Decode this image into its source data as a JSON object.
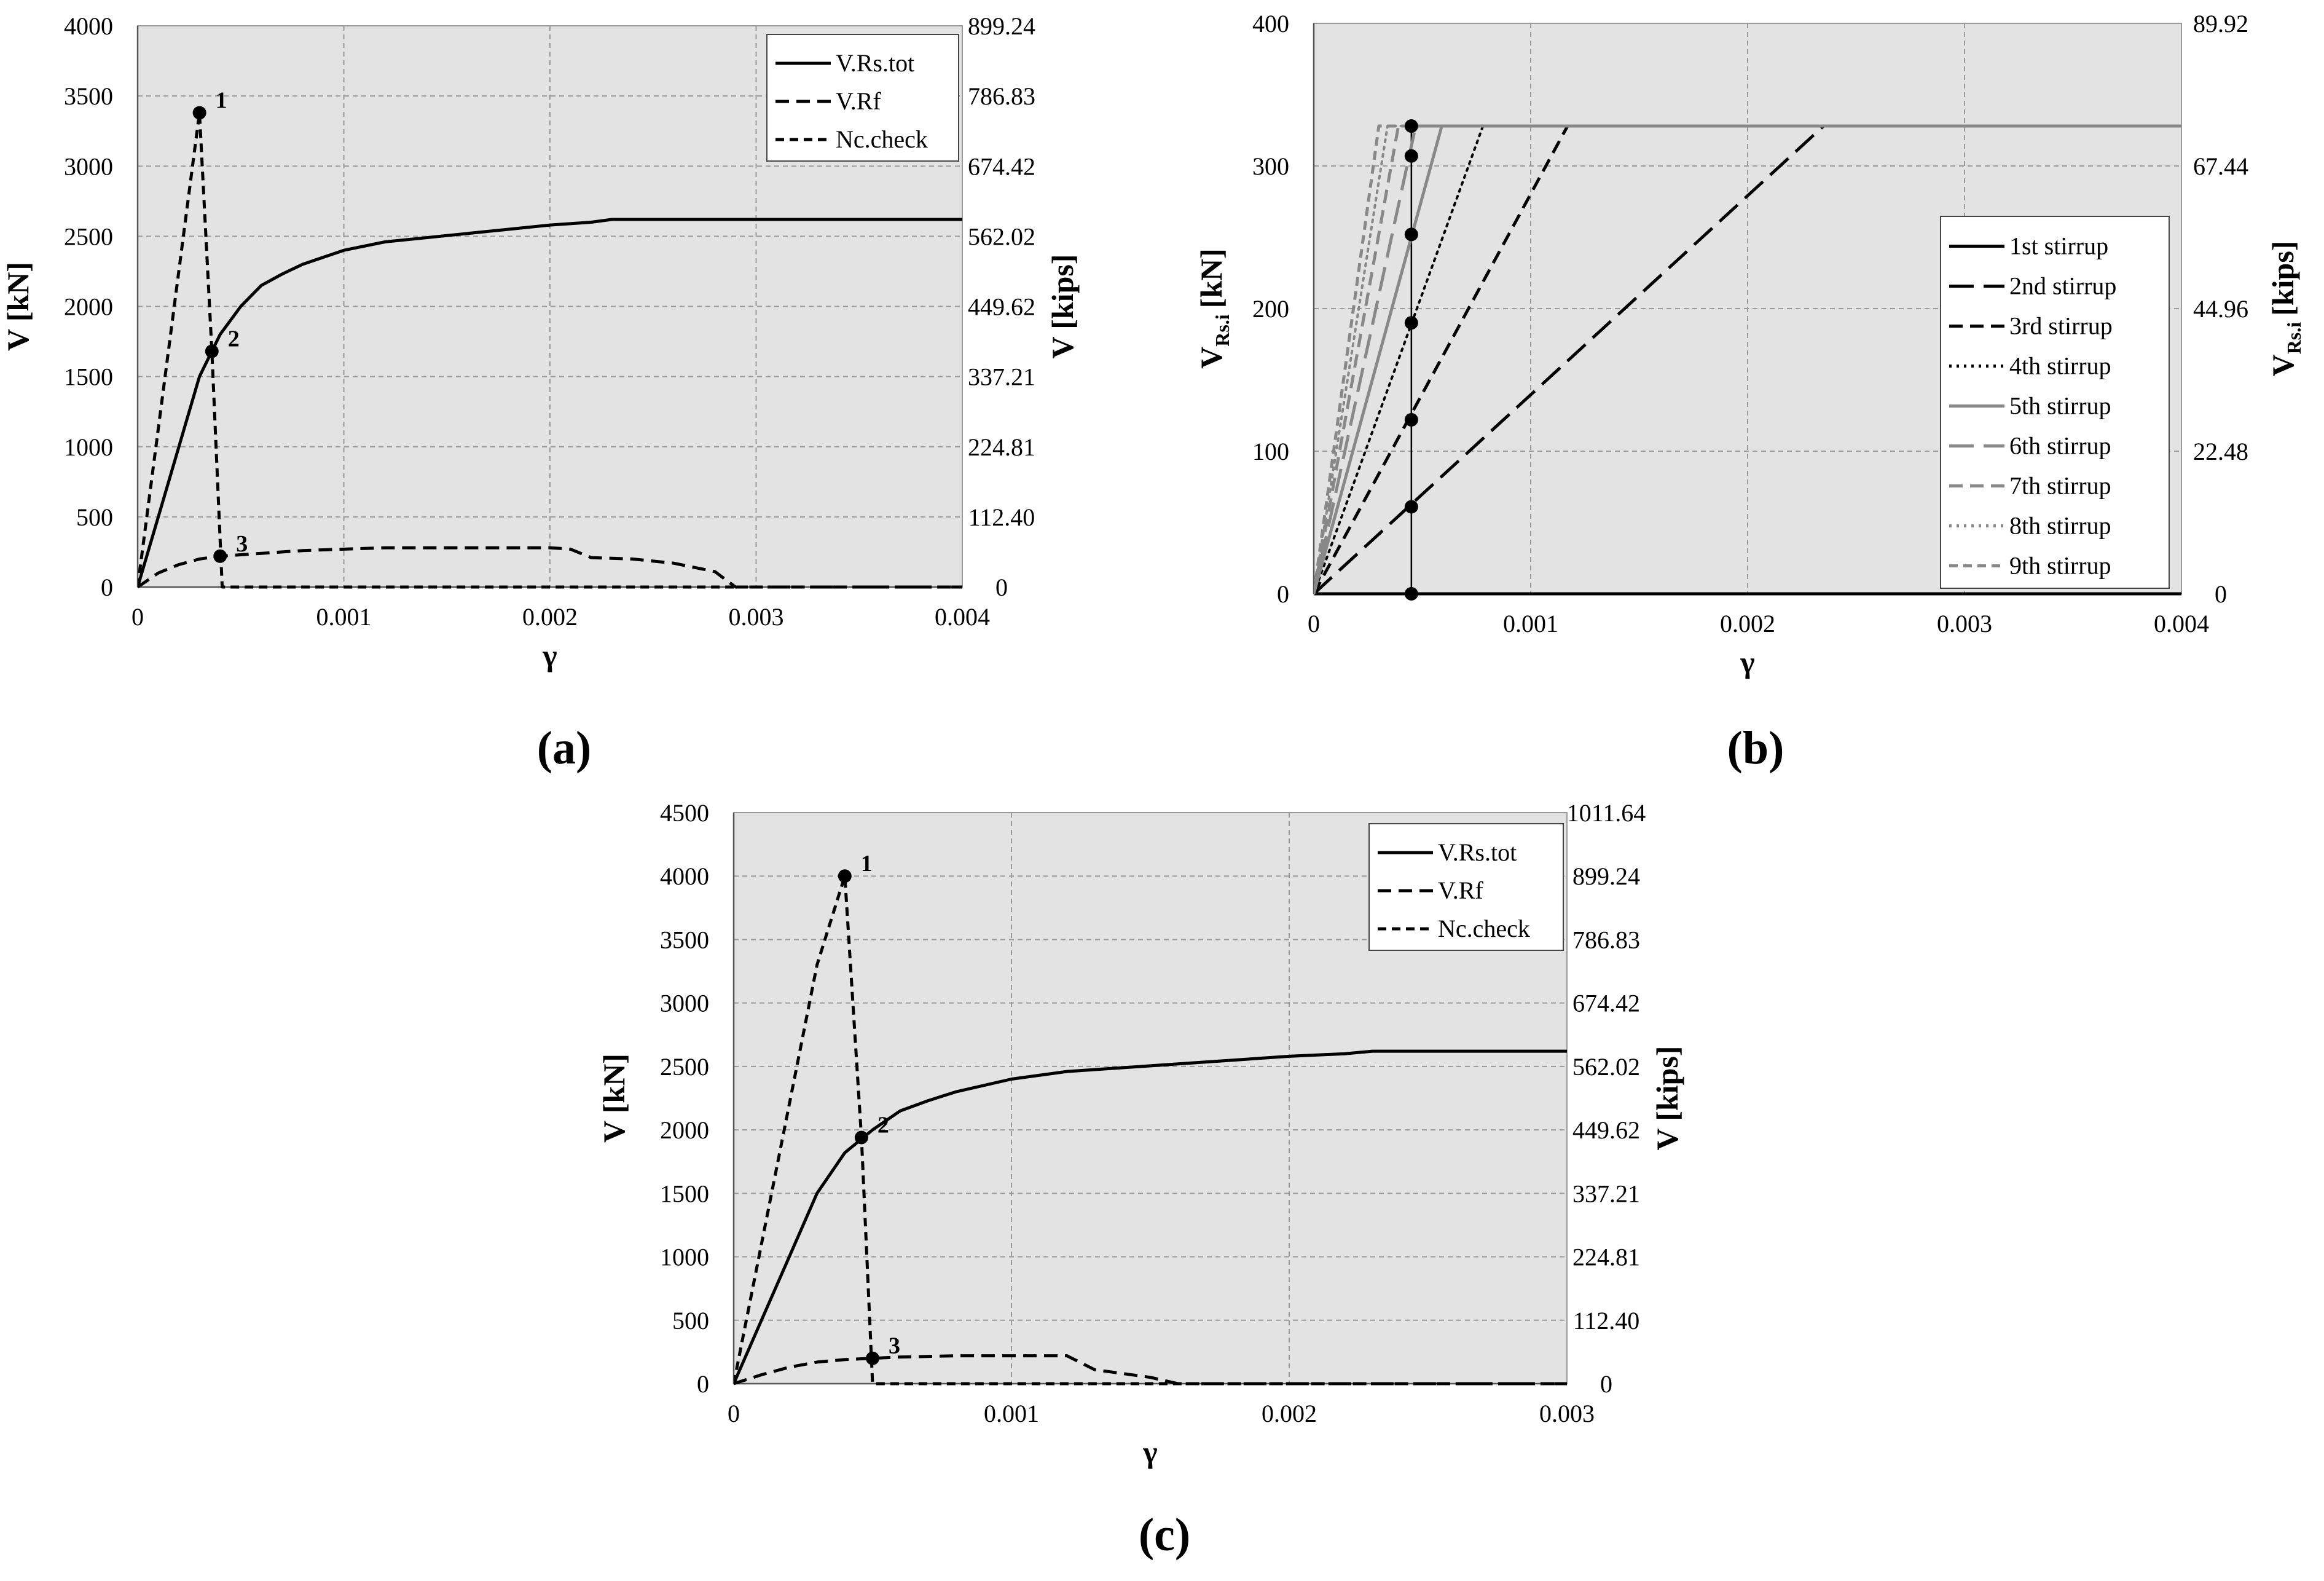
{
  "figure": {
    "panel_labels": [
      "(a)",
      "(b)",
      "(c)"
    ]
  },
  "chart_data": [
    {
      "id": "a",
      "type": "line",
      "panel_label": "(a)",
      "xlabel": "γ",
      "ylabel": "V  [kN]",
      "y2label": "V  [kips]",
      "xlim": [
        0,
        0.004
      ],
      "ylim": [
        0,
        4000
      ],
      "xticks": [
        0,
        0.001,
        0.002,
        0.003,
        0.004
      ],
      "xtick_labels": [
        "0",
        "0.001",
        "0.002",
        "0.003",
        "0.004"
      ],
      "yticks": [
        0,
        500,
        1000,
        1500,
        2000,
        2500,
        3000,
        3500,
        4000
      ],
      "ytick_labels": [
        "0",
        "500",
        "1000",
        "1500",
        "2000",
        "2500",
        "3000",
        "3500",
        "4000"
      ],
      "y2ticks": [
        0,
        500,
        1000,
        1500,
        2000,
        2500,
        3000,
        3500,
        4000
      ],
      "y2tick_labels": [
        "0",
        "112.40",
        "224.81",
        "337.21",
        "449.62",
        "562.02",
        "674.42",
        "786.83",
        "899.24"
      ],
      "grid": true,
      "legend_position": "top-right",
      "series": [
        {
          "name": "V.Rs.tot",
          "style": "solid",
          "color": "#000000",
          "x": [
            0,
            0.0001,
            0.0002,
            0.0003,
            0.0004,
            0.0005,
            0.0006,
            0.0007,
            0.0008,
            0.001,
            0.0012,
            0.0014,
            0.0016,
            0.0018,
            0.002,
            0.0022,
            0.0023,
            0.004
          ],
          "y": [
            0,
            500,
            1000,
            1500,
            1800,
            2000,
            2150,
            2230,
            2300,
            2400,
            2460,
            2490,
            2520,
            2550,
            2580,
            2600,
            2620,
            2620
          ]
        },
        {
          "name": "V.Rf",
          "style": "dash",
          "color": "#000000",
          "x": [
            0,
            0.0001,
            0.0002,
            0.0003,
            0.0004,
            0.0006,
            0.0008,
            0.001,
            0.0012,
            0.0014,
            0.0016,
            0.0018,
            0.002,
            0.0021,
            0.0022,
            0.0024,
            0.0026,
            0.0028,
            0.0029,
            0.004
          ],
          "y": [
            0,
            100,
            160,
            200,
            220,
            240,
            260,
            270,
            280,
            280,
            280,
            280,
            280,
            270,
            210,
            200,
            170,
            110,
            0,
            0
          ]
        },
        {
          "name": "Nc.check",
          "style": "short-dash",
          "color": "#000000",
          "x": [
            0,
            0.0003,
            0.00036,
            0.00041,
            0.004
          ],
          "y": [
            0,
            3380,
            1680,
            0,
            0
          ]
        }
      ],
      "markers": [
        {
          "label": "1",
          "x": 0.0003,
          "y": 3380
        },
        {
          "label": "2",
          "x": 0.00036,
          "y": 1680
        },
        {
          "label": "3",
          "x": 0.0004,
          "y": 220
        }
      ]
    },
    {
      "id": "b",
      "type": "line",
      "panel_label": "(b)",
      "xlabel": "γ",
      "ylabel": "VRs.i [kN]",
      "ylabel_main": "V",
      "ylabel_sub": "Rs.i",
      "ylabel_unit": "[kN]",
      "y2label": "VRs.i [kips]",
      "y2label_main": "V",
      "y2label_sub": "Rs.i",
      "y2label_unit": "[kips]",
      "xlim": [
        0,
        0.004
      ],
      "ylim": [
        0,
        400
      ],
      "xticks": [
        0,
        0.001,
        0.002,
        0.003,
        0.004
      ],
      "xtick_labels": [
        "0",
        "0.001",
        "0.002",
        "0.003",
        "0.004"
      ],
      "yticks": [
        0,
        100,
        200,
        300,
        400
      ],
      "ytick_labels": [
        "0",
        "100",
        "200",
        "300",
        "400"
      ],
      "y2ticks": [
        0,
        100,
        200,
        300,
        400
      ],
      "y2tick_labels": [
        "0",
        "22.48",
        "44.96",
        "67.44",
        "89.92"
      ],
      "grid": true,
      "legend_position": "right",
      "series": [
        {
          "name": "1st stirrup",
          "style": "solid",
          "color": "#000000",
          "x": [
            0,
            0.004
          ],
          "y": [
            0,
            0
          ]
        },
        {
          "name": "2nd stirrup",
          "style": "long-dash",
          "color": "#000000",
          "x": [
            0,
            0.00235,
            0.004
          ],
          "y": [
            0,
            328,
            328
          ]
        },
        {
          "name": "3rd stirrup",
          "style": "dash",
          "color": "#000000",
          "x": [
            0,
            0.00117,
            0.004
          ],
          "y": [
            0,
            328,
            328
          ]
        },
        {
          "name": "4th stirrup",
          "style": "dot",
          "color": "#000000",
          "x": [
            0,
            0.00078,
            0.004
          ],
          "y": [
            0,
            328,
            328
          ]
        },
        {
          "name": "5th stirrup",
          "style": "solid",
          "color": "#888888",
          "x": [
            0,
            0.00059,
            0.004
          ],
          "y": [
            0,
            328,
            328
          ]
        },
        {
          "name": "6th stirrup",
          "style": "long-dash",
          "color": "#888888",
          "x": [
            0,
            0.00047,
            0.004
          ],
          "y": [
            0,
            328,
            328
          ]
        },
        {
          "name": "7th stirrup",
          "style": "dash",
          "color": "#888888",
          "x": [
            0,
            0.00039,
            0.004
          ],
          "y": [
            0,
            328,
            328
          ]
        },
        {
          "name": "8th stirrup",
          "style": "dot",
          "color": "#888888",
          "x": [
            0,
            0.00034,
            0.004
          ],
          "y": [
            0,
            328,
            328
          ]
        },
        {
          "name": "9th stirrup",
          "style": "short-dash",
          "color": "#888888",
          "x": [
            0,
            0.0003,
            0.004
          ],
          "y": [
            0,
            328,
            328
          ]
        }
      ],
      "vertical_line_x": 0.00045,
      "markers": [
        {
          "label": "",
          "x": 0.00045,
          "y": 0
        },
        {
          "label": "",
          "x": 0.00045,
          "y": 61
        },
        {
          "label": "",
          "x": 0.00045,
          "y": 122
        },
        {
          "label": "",
          "x": 0.00045,
          "y": 190
        },
        {
          "label": "",
          "x": 0.00045,
          "y": 252
        },
        {
          "label": "",
          "x": 0.00045,
          "y": 307
        },
        {
          "label": "",
          "x": 0.00045,
          "y": 328
        }
      ]
    },
    {
      "id": "c",
      "type": "line",
      "panel_label": "(c)",
      "xlabel": "γ",
      "ylabel": "V  [kN]",
      "y2label": "V  [kips]",
      "xlim": [
        0,
        0.003
      ],
      "ylim": [
        0,
        4500
      ],
      "xticks": [
        0,
        0.001,
        0.002,
        0.003
      ],
      "xtick_labels": [
        "0",
        "0.001",
        "0.002",
        "0.003"
      ],
      "yticks": [
        0,
        500,
        1000,
        1500,
        2000,
        2500,
        3000,
        3500,
        4000,
        4500
      ],
      "ytick_labels": [
        "0",
        "500",
        "1000",
        "1500",
        "2000",
        "2500",
        "3000",
        "3500",
        "4000",
        "4500"
      ],
      "y2ticks": [
        0,
        500,
        1000,
        1500,
        2000,
        2500,
        3000,
        3500,
        4000,
        4500
      ],
      "y2tick_labels": [
        "0",
        "112.40",
        "224.81",
        "337.21",
        "449.62",
        "562.02",
        "674.42",
        "786.83",
        "899.24",
        "1011.64"
      ],
      "grid": true,
      "legend_position": "top-right",
      "series": [
        {
          "name": "V.Rs.tot",
          "style": "solid",
          "color": "#000000",
          "x": [
            0,
            0.0001,
            0.0002,
            0.0003,
            0.0004,
            0.0005,
            0.0006,
            0.0007,
            0.0008,
            0.001,
            0.0012,
            0.0014,
            0.0016,
            0.0018,
            0.002,
            0.0022,
            0.0023,
            0.003
          ],
          "y": [
            0,
            500,
            1000,
            1500,
            1820,
            2000,
            2150,
            2230,
            2300,
            2400,
            2460,
            2490,
            2520,
            2550,
            2580,
            2600,
            2620,
            2620
          ]
        },
        {
          "name": "V.Rf",
          "style": "dash",
          "color": "#000000",
          "x": [
            0,
            0.0001,
            0.0002,
            0.0003,
            0.0004,
            0.0005,
            0.0006,
            0.0008,
            0.001,
            0.0012,
            0.0013,
            0.0015,
            0.0016,
            0.003
          ],
          "y": [
            0,
            70,
            130,
            170,
            190,
            200,
            210,
            220,
            220,
            220,
            110,
            50,
            0,
            0
          ]
        },
        {
          "name": "Nc.check",
          "style": "short-dash",
          "color": "#000000",
          "x": [
            0,
            0.0002,
            0.0003,
            0.0004,
            0.00046,
            0.0005,
            0.003
          ],
          "y": [
            0,
            2200,
            3300,
            4000,
            1940,
            0,
            0
          ]
        }
      ],
      "markers": [
        {
          "label": "1",
          "x": 0.0004,
          "y": 4000
        },
        {
          "label": "2",
          "x": 0.00046,
          "y": 1940
        },
        {
          "label": "3",
          "x": 0.0005,
          "y": 200
        }
      ]
    }
  ]
}
